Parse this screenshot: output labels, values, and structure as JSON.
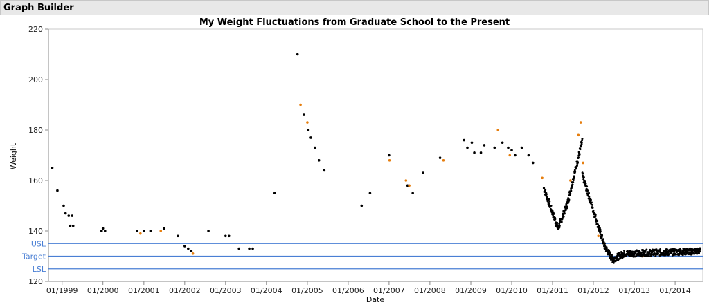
{
  "window": {
    "title": "Graph Builder"
  },
  "colors": {
    "point": "#000000",
    "highlight": "#e67e0e",
    "reference": "#4a7fd4",
    "axis": "#888888"
  },
  "chart_data": {
    "type": "scatter",
    "title": "My Weight Fluctuations from Graduate School to the Present",
    "xlabel": "Date",
    "ylabel": "Weight",
    "xlim": [
      "1998-09-01",
      "2014-09-05"
    ],
    "ylim": [
      120,
      220
    ],
    "grid": false,
    "x_ticks": [
      "01/1999",
      "01/2000",
      "01/2001",
      "01/2002",
      "01/2003",
      "01/2004",
      "01/2005",
      "01/2006",
      "01/2007",
      "01/2008",
      "01/2009",
      "01/2010",
      "01/2011",
      "01/2012",
      "01/2013",
      "01/2014"
    ],
    "y_ticks": [
      120,
      140,
      160,
      180,
      200,
      220
    ],
    "reference_lines": [
      {
        "name": "USL",
        "value": 135
      },
      {
        "name": "Target",
        "value": 130
      },
      {
        "name": "LSL",
        "value": 125
      }
    ],
    "series": [
      {
        "points": [
          [
            "1998-10-05",
            165
          ],
          [
            "1998-11-20",
            156
          ],
          [
            "1999-01-15",
            150
          ],
          [
            "1999-02-01",
            147
          ],
          [
            "1999-03-01",
            146
          ],
          [
            "1999-04-01",
            146
          ],
          [
            "1999-03-15",
            142
          ],
          [
            "1999-04-10",
            142
          ],
          [
            "1999-12-20",
            140
          ],
          [
            "2000-01-01",
            141
          ],
          [
            "2000-01-20",
            140
          ],
          [
            "2000-11-01",
            140
          ],
          [
            "2001-01-01",
            140
          ],
          [
            "2001-03-01",
            140
          ],
          [
            "2001-07-01",
            141
          ],
          [
            "2001-11-01",
            138
          ],
          [
            "2002-01-01",
            134
          ],
          [
            "2002-02-01",
            133
          ],
          [
            "2002-03-01",
            132
          ],
          [
            "2002-08-01",
            140
          ],
          [
            "2003-01-01",
            138
          ],
          [
            "2003-02-01",
            138
          ],
          [
            "2003-05-01",
            133
          ],
          [
            "2003-08-01",
            133
          ],
          [
            "2003-09-01",
            133
          ],
          [
            "2004-03-15",
            155
          ],
          [
            "2004-10-05",
            210
          ],
          [
            "2004-12-01",
            186
          ],
          [
            "2005-01-10",
            180
          ],
          [
            "2005-02-01",
            177
          ],
          [
            "2005-03-10",
            173
          ],
          [
            "2005-04-15",
            168
          ],
          [
            "2005-06-01",
            164
          ],
          [
            "2006-05-01",
            150
          ],
          [
            "2006-07-15",
            155
          ],
          [
            "2007-01-01",
            170
          ],
          [
            "2007-06-15",
            158
          ],
          [
            "2007-08-01",
            155
          ],
          [
            "2007-11-01",
            163
          ],
          [
            "2008-04-01",
            169
          ],
          [
            "2008-11-01",
            176
          ],
          [
            "2008-12-01",
            173
          ],
          [
            "2009-01-10",
            175
          ],
          [
            "2009-02-01",
            171
          ],
          [
            "2009-04-01",
            171
          ],
          [
            "2009-05-01",
            174
          ],
          [
            "2009-08-01",
            173
          ],
          [
            "2009-10-10",
            175
          ],
          [
            "2009-12-01",
            173
          ],
          [
            "2010-01-01",
            172
          ],
          [
            "2010-02-01",
            170
          ],
          [
            "2010-04-01",
            173
          ],
          [
            "2010-06-01",
            170
          ],
          [
            "2010-07-10",
            167
          ]
        ]
      },
      {
        "points": [
          [
            "2000-12-01",
            139
          ],
          [
            "2001-06-01",
            140
          ],
          [
            "2002-03-15",
            131
          ],
          [
            "2004-11-01",
            190
          ],
          [
            "2005-01-01",
            183
          ],
          [
            "2007-01-05",
            168
          ],
          [
            "2007-06-01",
            160
          ],
          [
            "2007-07-01",
            158
          ],
          [
            "2008-05-01",
            168
          ],
          [
            "2009-09-01",
            180
          ],
          [
            "2009-12-15",
            170
          ],
          [
            "2010-10-01",
            161
          ],
          [
            "2011-06-10",
            160
          ],
          [
            "2011-08-20",
            178
          ],
          [
            "2011-09-10",
            183
          ],
          [
            "2011-10-01",
            167
          ],
          [
            "2012-02-15",
            138
          ],
          [
            "2013-03-15",
            130
          ]
        ]
      }
    ],
    "dense_segments": [
      {
        "start": "2010-10-15",
        "end": "2011-02-20",
        "from": 157,
        "to": 141
      },
      {
        "start": "2011-02-20",
        "end": "2011-05-15",
        "from": 141,
        "to": 151
      },
      {
        "start": "2011-05-15",
        "end": "2011-09-25",
        "from": 151,
        "to": 176
      },
      {
        "start": "2011-09-25",
        "end": "2012-04-10",
        "from": 162,
        "to": 134
      },
      {
        "start": "2012-04-10",
        "end": "2012-07-01",
        "from": 134,
        "to": 128
      },
      {
        "start": "2012-07-01",
        "end": "2012-10-01",
        "from": 129,
        "to": 131
      },
      {
        "start": "2012-10-01",
        "end": "2014-08-15",
        "from": 131,
        "to": 132
      }
    ]
  }
}
